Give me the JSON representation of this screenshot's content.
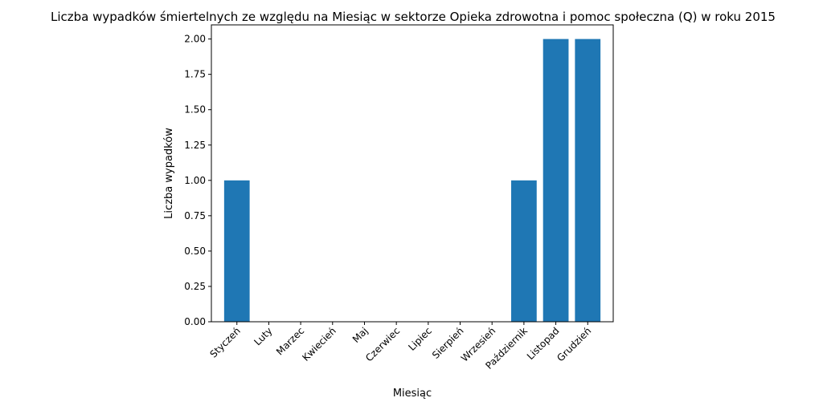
{
  "chart_data": {
    "type": "bar",
    "title": "Liczba wypadków śmiertelnych ze względu na Miesiąc w sektorze Opieka zdrowotna i pomoc społeczna (Q) w roku 2015",
    "xlabel": "Miesiąc",
    "ylabel": "Liczba wypadków",
    "categories": [
      "Styczeń",
      "Luty",
      "Marzec",
      "Kwiecień",
      "Maj",
      "Czerwiec",
      "Lipiec",
      "Sierpień",
      "Wrzesień",
      "Październik",
      "Listopad",
      "Grudzień"
    ],
    "values": [
      1,
      0,
      0,
      0,
      0,
      0,
      0,
      0,
      0,
      1,
      2,
      2
    ],
    "ylim": [
      0,
      2.1
    ],
    "yticks": [
      "0.00",
      "0.25",
      "0.50",
      "0.75",
      "1.00",
      "1.25",
      "1.50",
      "1.75",
      "2.00"
    ],
    "bar_color": "#1f77b4",
    "grid": false
  }
}
